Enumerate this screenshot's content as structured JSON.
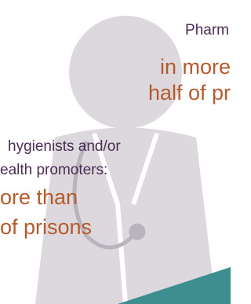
{
  "pharmacists": {
    "label": "Pharm",
    "stat_line1": "in more",
    "stat_line2": "half of pr"
  },
  "hygienists": {
    "label_line1": "hygienists and/or",
    "label_line2": "ealth promoters:",
    "stat_line1": "ore than",
    "stat_line2": "of prisons"
  }
}
